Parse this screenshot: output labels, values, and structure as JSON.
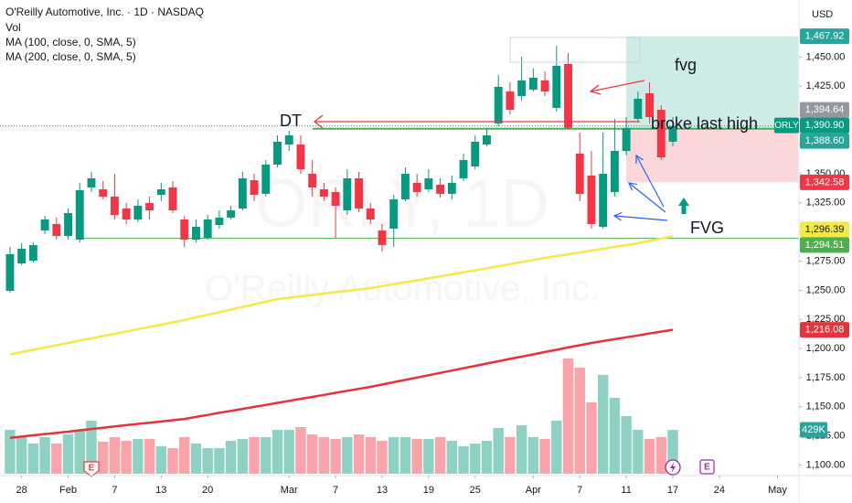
{
  "chart_data": {
    "type": "candlestick",
    "title": "O'Reilly Automotive, Inc. · 1D · NASDAQ",
    "currency": "USD",
    "watermark": [
      "ORLY, 1D",
      "O'Reilly Automotive, Inc."
    ],
    "volume_name": "Vol",
    "up_color": "#089981",
    "down_color": "#f23645",
    "xlim": [
      -0.86,
      67.77
    ],
    "xticks": [
      {
        "value": 1,
        "label": "28"
      },
      {
        "value": 5,
        "label": "Feb"
      },
      {
        "value": 9,
        "label": "7"
      },
      {
        "value": 13,
        "label": "13"
      },
      {
        "value": 17,
        "label": "20"
      },
      {
        "value": 24,
        "label": "Mar"
      },
      {
        "value": 28,
        "label": "7"
      },
      {
        "value": 32,
        "label": "13"
      },
      {
        "value": 36,
        "label": "19"
      },
      {
        "value": 40,
        "label": "25"
      },
      {
        "value": 45,
        "label": "Apr"
      },
      {
        "value": 49,
        "label": "7"
      },
      {
        "value": 53,
        "label": "11"
      },
      {
        "value": 57,
        "label": "17"
      },
      {
        "value": 61,
        "label": "24"
      },
      {
        "value": 66,
        "label": "May"
      }
    ],
    "ylim": [
      1091,
      1499
    ],
    "yticks": [
      {
        "value": 1100,
        "label": "1,100.00"
      },
      {
        "value": 1125,
        "label": "1,125.00"
      },
      {
        "value": 1150,
        "label": "1,150.00"
      },
      {
        "value": 1175,
        "label": "1,175.00"
      },
      {
        "value": 1200,
        "label": "1,200.00"
      },
      {
        "value": 1225,
        "label": "1,225.00"
      },
      {
        "value": 1250,
        "label": "1,250.00"
      },
      {
        "value": 1275,
        "label": "1,275.00"
      },
      {
        "value": 1300,
        "label": "1,300.00"
      },
      {
        "value": 1325,
        "label": "1,325.00"
      },
      {
        "value": 1350,
        "label": "1,350.00"
      },
      {
        "value": 1375,
        "label": "1,375.00"
      },
      {
        "value": 1400,
        "label": "1,400.00"
      },
      {
        "value": 1425,
        "label": "1,425.00"
      },
      {
        "value": 1450,
        "label": "1,450.00"
      }
    ],
    "grid": false,
    "open": [
      1249.5,
      1273,
      1275.4,
      1301.3,
      1306.8,
      1296.6,
      1293.4,
      1338.2,
      1336.6,
      1330.3,
      1320.1,
      1310.7,
      1324.8,
      1331.9,
      1338.2,
      1310.7,
      1293.4,
      1295,
      1306,
      1312.3,
      1320.1,
      1344.4,
      1332.7,
      1357.8,
      1375,
      1375,
      1349.9,
      1336.6,
      1334.2,
      1318.5,
      1346,
      1320.1,
      1301.3,
      1302.8,
      1328,
      1342.1,
      1336.6,
      1340.5,
      1332.7,
      1346,
      1356.2,
      1375,
      1393.1,
      1420.5,
      1416.6,
      1422.1,
      1430,
      1406.4,
      1444.1,
      1367.2,
      1348.4,
      1304.4,
      1334.2,
      1369.5,
      1397,
      1419,
      1404.8,
      1377.4
    ],
    "high": [
      1287.2,
      1290.3,
      1291,
      1313.8,
      1312.3,
      1320.1,
      1342.1,
      1351.5,
      1343.6,
      1349.9,
      1324.8,
      1328,
      1330.3,
      1342.1,
      1343.6,
      1313.8,
      1310.7,
      1314.6,
      1318.5,
      1322.5,
      1351.5,
      1349.9,
      1361.7,
      1382.9,
      1386.8,
      1382.9,
      1361.7,
      1342.1,
      1338.2,
      1353.8,
      1351.5,
      1324.8,
      1306.8,
      1331.9,
      1355.4,
      1349.9,
      1353.8,
      1346,
      1348.4,
      1367.2,
      1382.9,
      1389.2,
      1434.7,
      1428.4,
      1450.4,
      1440.2,
      1437.8,
      1459.8,
      1453.5,
      1385.2,
      1369.5,
      1385.2,
      1397,
      1398.6,
      1420.5,
      1428.4,
      1408.7,
      1398.6
    ],
    "low": [
      1248,
      1271.5,
      1273.8,
      1298.1,
      1293.4,
      1293.4,
      1291,
      1334.2,
      1328,
      1310.7,
      1306.8,
      1308.3,
      1310.7,
      1326.4,
      1316.2,
      1287.2,
      1291,
      1293.4,
      1302.8,
      1310.7,
      1318.5,
      1326.4,
      1330.3,
      1355.4,
      1369.5,
      1349.9,
      1330.3,
      1326.4,
      1295,
      1314.6,
      1317,
      1306.8,
      1283.2,
      1287.2,
      1326.4,
      1330.3,
      1334.2,
      1329.5,
      1328,
      1343.6,
      1353.8,
      1373.5,
      1390.7,
      1400.9,
      1412.7,
      1420.5,
      1416.6,
      1403.3,
      1387.6,
      1326.4,
      1302.8,
      1302.8,
      1330.3,
      1365.6,
      1394.6,
      1393.1,
      1361.7,
      1373.5
    ],
    "close": [
      1280.9,
      1285.6,
      1288.7,
      1310.7,
      1296.6,
      1316.2,
      1335.8,
      1346,
      1330.3,
      1314.6,
      1310.7,
      1322.5,
      1318.5,
      1336.6,
      1318.5,
      1293.4,
      1304.4,
      1310.7,
      1312.3,
      1318.5,
      1346,
      1331.9,
      1357.8,
      1377.4,
      1382.9,
      1353.8,
      1338.2,
      1330.3,
      1322.5,
      1346,
      1320.1,
      1310.7,
      1288.7,
      1328,
      1349.9,
      1334.2,
      1346,
      1332.7,
      1342.1,
      1361.7,
      1377.4,
      1382.9,
      1424.5,
      1404.8,
      1430,
      1432.3,
      1420.5,
      1442.5,
      1389.2,
      1332.7,
      1306.8,
      1349.9,
      1369.5,
      1389.2,
      1414.3,
      1398.6,
      1364,
      1390.9
    ],
    "volume": [
      429,
      358,
      295,
      358,
      295,
      384,
      429,
      519,
      313,
      358,
      322,
      340,
      340,
      268,
      250,
      358,
      295,
      250,
      250,
      322,
      340,
      358,
      358,
      429,
      429,
      456,
      384,
      358,
      340,
      358,
      384,
      358,
      322,
      358,
      358,
      340,
      340,
      358,
      322,
      268,
      295,
      322,
      447,
      358,
      474,
      358,
      340,
      519,
      1126,
      1037,
      697,
      966,
      742,
      563,
      429,
      340,
      358,
      429
    ],
    "volume_ylim": [
      0,
      4630
    ],
    "series": [
      {
        "name": "MA (100, close, 0, SMA, 5)",
        "color": "#f5e94a",
        "values": [
          1195,
          1197,
          1198.9,
          1200.9,
          1202.8,
          1204.8,
          1206.8,
          1208.7,
          1210.7,
          1212.6,
          1214.6,
          1216.6,
          1218.5,
          1220.5,
          1222.4,
          1224.4,
          1226.7,
          1228.9,
          1231.2,
          1233.4,
          1235.7,
          1237.9,
          1240.2,
          1242.4,
          1243.6,
          1244.8,
          1245.9,
          1247.1,
          1248.3,
          1249.5,
          1250.6,
          1251.8,
          1253.5,
          1255.2,
          1256.9,
          1258.5,
          1260.2,
          1261.9,
          1263.6,
          1265.4,
          1267.1,
          1268.9,
          1270.6,
          1272.4,
          1274.2,
          1275.9,
          1277.7,
          1279.3,
          1280.9,
          1282.4,
          1284,
          1285.6,
          1287.2,
          1288.7,
          1290.3,
          1292.3,
          1294.4,
          1296.39
        ]
      },
      {
        "name": "MA (200, close, 0, SMA, 5)",
        "color": "#e5333c",
        "values": [
          1123.3,
          1124.4,
          1125.5,
          1126.6,
          1127.6,
          1128.7,
          1129.8,
          1130.9,
          1132,
          1133.1,
          1134.2,
          1135.3,
          1136.3,
          1137.4,
          1138.5,
          1139.6,
          1141.3,
          1143,
          1144.8,
          1146.5,
          1148.2,
          1149.9,
          1151.6,
          1153.4,
          1155.1,
          1156.8,
          1158.5,
          1160.2,
          1162,
          1163.7,
          1165.4,
          1167.1,
          1169.1,
          1171.1,
          1173.1,
          1175.1,
          1177.1,
          1179.1,
          1181.1,
          1183.1,
          1185.1,
          1187.1,
          1189.1,
          1191.1,
          1193,
          1195,
          1197,
          1198.9,
          1200.9,
          1202.8,
          1204.8,
          1206.4,
          1208,
          1209.6,
          1211.2,
          1212.9,
          1214.5,
          1216.08
        ]
      }
    ],
    "price_tags": [
      {
        "value": 1467.92,
        "label": "1,467.92",
        "color": "#26a69a"
      },
      {
        "value": 1394.64,
        "label": "1,394.64",
        "color": "#9598a1"
      },
      {
        "value": 1390.9,
        "label": "1,390.90",
        "color": "#089981",
        "symbol": "ORLY"
      },
      {
        "value": 1388.6,
        "label": "1,388.60",
        "color": "#26a69a"
      },
      {
        "value": 1342.58,
        "label": "1,342.58",
        "color": "#f23645"
      },
      {
        "value": 1296.39,
        "label": "1,296.39",
        "color": "#f5e94a"
      },
      {
        "value": 1294.51,
        "label": "1,294.51",
        "color": "#4caf50"
      },
      {
        "value": 1216.08,
        "label": "1,216.08",
        "color": "#e5333c"
      }
    ],
    "volume_tags": [
      {
        "value": 429,
        "label": "429K",
        "color": "#26a69a"
      }
    ],
    "annotations": [
      "DT",
      "fvg",
      "broke last high",
      "FVG"
    ],
    "events": [
      "E",
      "E"
    ]
  }
}
